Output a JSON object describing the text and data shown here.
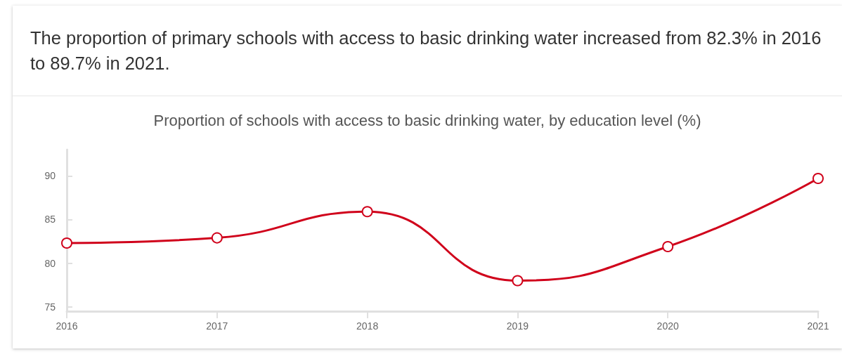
{
  "chart_data": {
    "type": "line",
    "title": "The proportion of primary schools with access to basic drinking water increased from 82.3% in 2016 to 89.7% in 2021.",
    "subtitle": "Proportion of schools with access to basic drinking water, by education level (%)",
    "categories": [
      "2016",
      "2017",
      "2018",
      "2019",
      "2020",
      "2021"
    ],
    "series": [
      {
        "color": "#d0021b",
        "values": [
          82.3,
          82.9,
          85.9,
          78.0,
          81.9,
          89.7
        ]
      }
    ],
    "ylim": [
      74.5,
      93
    ],
    "yticks": [
      75,
      80,
      85,
      90
    ],
    "grid": false,
    "marker": "circle",
    "line_style": "solid"
  }
}
